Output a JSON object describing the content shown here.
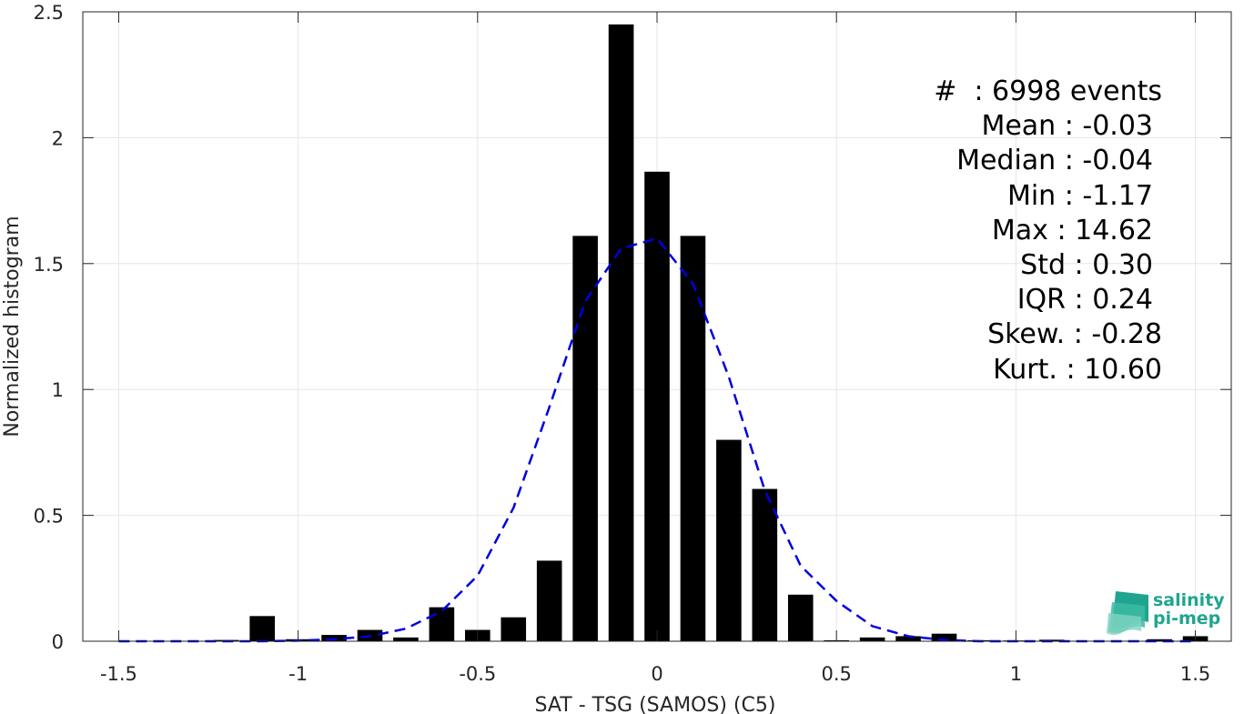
{
  "chart_data": {
    "type": "bar",
    "xlabel": "SAT - TSG (SAMOS) (C5)",
    "ylabel": "Normalized histogram",
    "xlim": [
      -1.6,
      1.6
    ],
    "ylim": [
      0,
      2.5
    ],
    "xticks": [
      -1.5,
      -1,
      -0.5,
      0,
      0.5,
      1,
      1.5
    ],
    "xtick_labels": [
      "-1.5",
      "-1",
      "-0.5",
      "0",
      "0.5",
      "1",
      "1.5"
    ],
    "yticks": [
      0,
      0.5,
      1,
      1.5,
      2,
      2.5
    ],
    "ytick_labels": [
      "0",
      "0.5",
      "1",
      "1.5",
      "2",
      "2.5"
    ],
    "grid": true,
    "bar_width": 0.07,
    "bar_color": "#000000",
    "bars": {
      "x": [
        -1.2,
        -1.1,
        -1.0,
        -0.9,
        -0.8,
        -0.7,
        -0.6,
        -0.5,
        -0.4,
        -0.3,
        -0.2,
        -0.1,
        0.0,
        0.1,
        0.2,
        0.3,
        0.4,
        0.5,
        0.6,
        0.7,
        0.8,
        0.9,
        1.0,
        1.1,
        1.2,
        1.3,
        1.4,
        1.5
      ],
      "values": [
        0.005,
        0.1,
        0.008,
        0.025,
        0.045,
        0.015,
        0.135,
        0.045,
        0.095,
        0.32,
        1.61,
        2.45,
        1.865,
        1.61,
        0.8,
        0.605,
        0.185,
        0.004,
        0.015,
        0.02,
        0.03,
        0.004,
        0.003,
        0.006,
        0.002,
        0.002,
        0.008,
        0.02
      ]
    },
    "fit_curve": {
      "color": "#0000e0",
      "style": "dashed",
      "x": [
        -1.5,
        -1.4,
        -1.3,
        -1.2,
        -1.1,
        -1.0,
        -0.9,
        -0.8,
        -0.7,
        -0.6,
        -0.5,
        -0.4,
        -0.3,
        -0.2,
        -0.1,
        0.0,
        0.1,
        0.2,
        0.3,
        0.4,
        0.5,
        0.6,
        0.7,
        0.8,
        0.9,
        1.0,
        1.1,
        1.2,
        1.3,
        1.4,
        1.5
      ],
      "y": [
        0.0,
        0.0,
        0.0,
        0.0,
        0.0,
        0.002,
        0.008,
        0.02,
        0.05,
        0.12,
        0.26,
        0.53,
        0.93,
        1.35,
        1.56,
        1.6,
        1.42,
        1.05,
        0.6,
        0.3,
        0.16,
        0.06,
        0.02,
        0.005,
        0.0,
        0.0,
        0.0,
        0.0,
        0.0,
        0.0,
        0.0
      ]
    }
  },
  "stats": [
    "#  : 6998 events",
    "Mean : -0.03",
    "Median : -0.04",
    "Min : -1.17",
    "Max : 14.62",
    "Std : 0.30",
    "IQR : 0.24",
    "Skew. : -0.28",
    "Kurt. : 10.60"
  ],
  "logo": {
    "line1": "salinity",
    "line2": "pi-mep",
    "color": "#1fa58f"
  }
}
